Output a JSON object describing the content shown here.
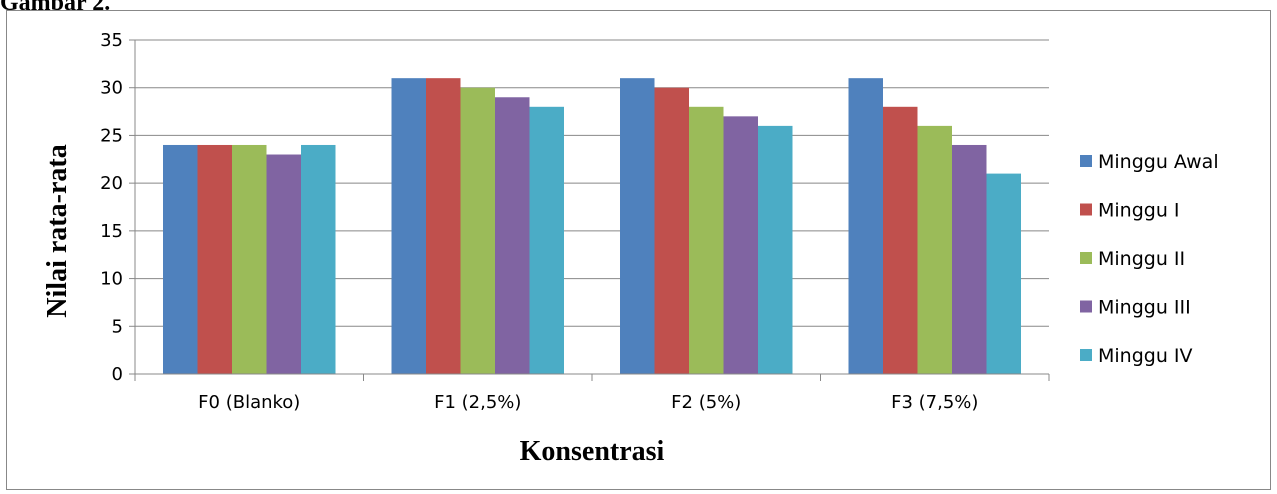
{
  "page": {
    "label": "Gambar 2."
  },
  "chart_data": {
    "type": "bar",
    "title": "",
    "xlabel": "Konsentrasi",
    "ylabel": "Nilai rata-rata",
    "ylim": [
      0,
      35
    ],
    "yticks": [
      0,
      5,
      10,
      15,
      20,
      25,
      30,
      35
    ],
    "grid": true,
    "legend_position": "right",
    "categories": [
      "F0 (Blanko)",
      "F1 (2,5%)",
      "F2 (5%)",
      "F3 (7,5%)"
    ],
    "series": [
      {
        "name": "Minggu Awal",
        "color": "#4F81BD",
        "values": [
          24,
          31,
          31,
          31
        ]
      },
      {
        "name": "Minggu I",
        "color": "#C0504D",
        "values": [
          24,
          31,
          30,
          28
        ]
      },
      {
        "name": "Minggu II",
        "color": "#9BBB59",
        "values": [
          24,
          30,
          28,
          26
        ]
      },
      {
        "name": "Minggu III",
        "color": "#8064A2",
        "values": [
          23,
          29,
          27,
          24
        ]
      },
      {
        "name": "Minggu IV",
        "color": "#4BACC6",
        "values": [
          24,
          28,
          26,
          21
        ]
      }
    ]
  }
}
